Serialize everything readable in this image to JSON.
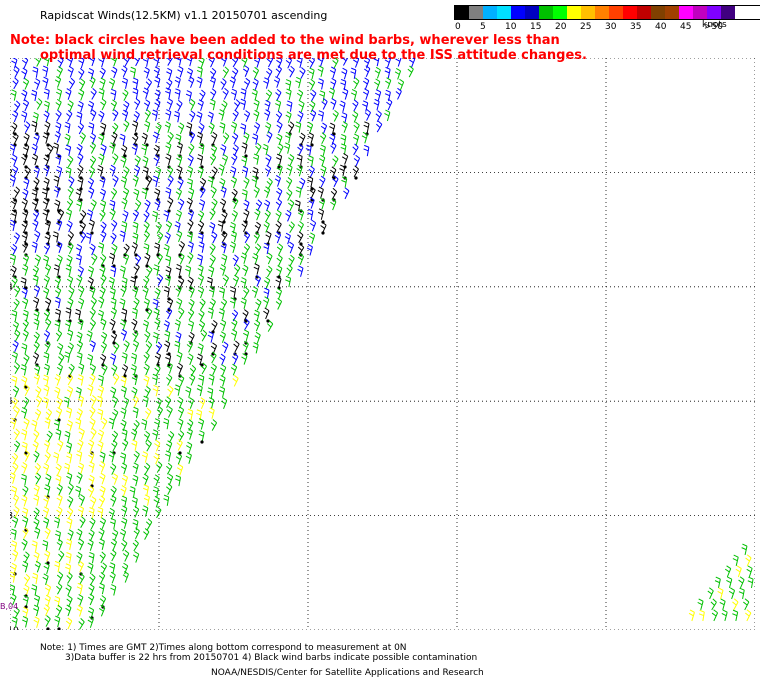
{
  "title": "Rapidscat Winds(12.5KM) v1.1 20150701 ascending",
  "note": {
    "line1": "Note: black circles have been added to the wind barbs, wherever less than",
    "line2": "optimal wind retrieval conditions are met due to the ISS attitude changes."
  },
  "legend": {
    "colors": [
      "#000000",
      "#7f7f7f",
      "#00b0ff",
      "#00e0ff",
      "#0000ff",
      "#0000c0",
      "#00c000",
      "#00ff00",
      "#ffff00",
      "#ffc000",
      "#ff8000",
      "#ff4000",
      "#ff0000",
      "#c00000",
      "#804000",
      "#a04000",
      "#ff00ff",
      "#c000c0",
      "#8000ff",
      "#400080"
    ],
    "labels": [
      "0",
      "5",
      "10",
      "15",
      "20",
      "25",
      "30",
      "35",
      "40",
      "45",
      ">50"
    ],
    "unit": "knots"
  },
  "axes": {
    "x_ticks": [
      "-30",
      "-27",
      "-24",
      "-21",
      "-18",
      "-15"
    ],
    "y_ticks": [
      "0",
      "-2",
      "-4",
      "-6",
      "-8",
      "-10"
    ]
  },
  "corner_label": "B,04",
  "footer": {
    "line1": "Note: 1) Times are GMT 2)Times along bottom correspond to measurement at 0N",
    "line2": "3)Data buffer is 22 hrs from 20150701 4) Black wind barbs indicate possible contamination",
    "credit": "NOAA/NESDIS/Center for Satellite Applications and Research"
  },
  "chart_data": {
    "type": "map",
    "projection": "lat-lon",
    "xlim": [
      -30,
      -15
    ],
    "ylim": [
      -10,
      0
    ],
    "grid": true,
    "wind_color_scale_knots": [
      0,
      5,
      10,
      15,
      20,
      25,
      30,
      35,
      40,
      45,
      50
    ],
    "swaths": [
      {
        "name": "main",
        "region": "lon -30 to -21.5, lat 0 to -10",
        "dominant_speeds_knots": [
          5,
          15,
          20
        ]
      },
      {
        "name": "east",
        "region": "lon -16.5 to -15, lat -8.5 to -10",
        "dominant_speeds_knots": [
          15,
          20
        ]
      }
    ]
  }
}
